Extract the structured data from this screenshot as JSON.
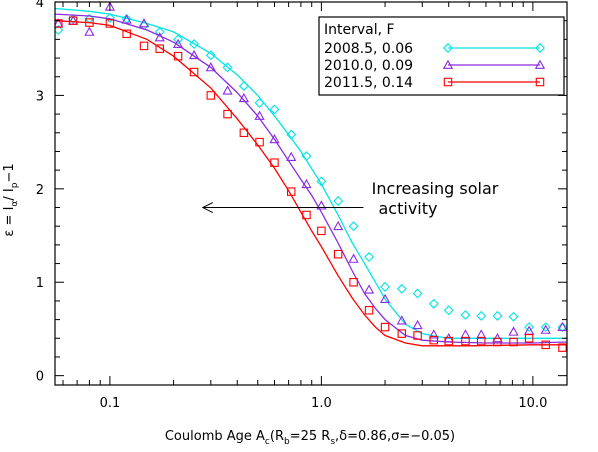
{
  "chart_data": {
    "type": "scatter",
    "title": "",
    "xlabel": "Coulomb Age A",
    "xlabel_sub": "c",
    "xlabel_params": "(R",
    "xlabel_params_sub1": "b",
    "xlabel_params_mid": "=25 R",
    "xlabel_params_sub2": "s",
    "xlabel_params_tail": ",δ=0.86,σ=−0.05)",
    "ylabel": "ε = I",
    "ylabel_sub1": "α",
    "ylabel_mid": "/ I",
    "ylabel_sub2": "p",
    "ylabel_tail": "−1",
    "xscale": "log",
    "xlim": [
      0.055,
      14.5
    ],
    "ylim": [
      -0.1,
      4.0
    ],
    "x_ticks": [
      0.1,
      1.0,
      10.0
    ],
    "x_tick_labels": [
      "0.1",
      "1.0",
      "10.0"
    ],
    "y_ticks": [
      0,
      1,
      2,
      3,
      4
    ],
    "y_tick_labels": [
      "0",
      "1",
      "2",
      "3",
      "4"
    ],
    "legend": {
      "placement": "top-right",
      "title": "Interval, F",
      "entries": [
        "2008.5, 0.06",
        "2010.0, 0.09",
        "2011.5, 0.14"
      ]
    },
    "annotation": {
      "lines": [
        "Increasing solar",
        "activity"
      ],
      "arrow_from_x": 1.58,
      "arrow_to_x": 0.275,
      "arrow_y": 1.8
    },
    "series": [
      {
        "name": "2008.5, 0.06",
        "color": "#00e5e5",
        "marker": "diamond",
        "points": [
          [
            0.057,
            3.7
          ],
          [
            0.067,
            3.82
          ],
          [
            0.08,
            3.82
          ],
          [
            0.1,
            3.83
          ],
          [
            0.12,
            3.82
          ],
          [
            0.145,
            3.75
          ],
          [
            0.172,
            3.68
          ],
          [
            0.21,
            3.6
          ],
          [
            0.25,
            3.55
          ],
          [
            0.3,
            3.43
          ],
          [
            0.36,
            3.3
          ],
          [
            0.43,
            3.1
          ],
          [
            0.51,
            2.92
          ],
          [
            0.6,
            2.85
          ],
          [
            0.72,
            2.58
          ],
          [
            0.85,
            2.35
          ],
          [
            1.0,
            2.08
          ],
          [
            1.2,
            1.87
          ],
          [
            1.42,
            1.6
          ],
          [
            1.68,
            1.27
          ],
          [
            2.0,
            0.95
          ],
          [
            2.4,
            0.93
          ],
          [
            2.85,
            0.88
          ],
          [
            3.4,
            0.77
          ],
          [
            4.0,
            0.7
          ],
          [
            4.8,
            0.65
          ],
          [
            5.7,
            0.64
          ],
          [
            6.8,
            0.64
          ],
          [
            8.1,
            0.63
          ],
          [
            9.6,
            0.52
          ],
          [
            11.5,
            0.52
          ],
          [
            13.8,
            0.52
          ]
        ],
        "curve": [
          [
            0.055,
            3.93
          ],
          [
            0.08,
            3.9
          ],
          [
            0.1,
            3.87
          ],
          [
            0.15,
            3.77
          ],
          [
            0.2,
            3.68
          ],
          [
            0.3,
            3.45
          ],
          [
            0.4,
            3.22
          ],
          [
            0.5,
            3.0
          ],
          [
            0.6,
            2.78
          ],
          [
            0.7,
            2.58
          ],
          [
            0.8,
            2.4
          ],
          [
            1.0,
            2.05
          ],
          [
            1.2,
            1.72
          ],
          [
            1.4,
            1.42
          ],
          [
            1.6,
            1.2
          ],
          [
            1.8,
            1.0
          ],
          [
            2.0,
            0.82
          ],
          [
            2.5,
            0.55
          ],
          [
            3.0,
            0.45
          ],
          [
            3.5,
            0.42
          ],
          [
            4.0,
            0.4
          ],
          [
            6.0,
            0.4
          ],
          [
            10.0,
            0.4
          ],
          [
            14.5,
            0.4
          ]
        ]
      },
      {
        "name": "2010.0, 0.09",
        "color": "#8a2be2",
        "marker": "triangle",
        "points": [
          [
            0.057,
            3.77
          ],
          [
            0.067,
            3.8
          ],
          [
            0.08,
            3.68
          ],
          [
            0.1,
            3.95
          ],
          [
            0.12,
            3.81
          ],
          [
            0.145,
            3.77
          ],
          [
            0.172,
            3.62
          ],
          [
            0.21,
            3.55
          ],
          [
            0.25,
            3.43
          ],
          [
            0.3,
            3.3
          ],
          [
            0.36,
            3.05
          ],
          [
            0.43,
            2.97
          ],
          [
            0.51,
            2.78
          ],
          [
            0.6,
            2.53
          ],
          [
            0.72,
            2.34
          ],
          [
            0.85,
            2.05
          ],
          [
            1.0,
            1.82
          ],
          [
            1.2,
            1.6
          ],
          [
            1.42,
            1.25
          ],
          [
            1.68,
            0.92
          ],
          [
            2.0,
            0.82
          ],
          [
            2.4,
            0.59
          ],
          [
            2.85,
            0.54
          ],
          [
            3.4,
            0.44
          ],
          [
            4.0,
            0.4
          ],
          [
            4.8,
            0.44
          ],
          [
            5.7,
            0.44
          ],
          [
            6.8,
            0.4
          ],
          [
            8.1,
            0.47
          ],
          [
            9.6,
            0.48
          ],
          [
            11.5,
            0.49
          ],
          [
            13.8,
            0.52
          ]
        ],
        "curve": [
          [
            0.055,
            3.87
          ],
          [
            0.08,
            3.85
          ],
          [
            0.1,
            3.82
          ],
          [
            0.15,
            3.7
          ],
          [
            0.2,
            3.57
          ],
          [
            0.3,
            3.3
          ],
          [
            0.4,
            3.03
          ],
          [
            0.5,
            2.78
          ],
          [
            0.6,
            2.53
          ],
          [
            0.7,
            2.3
          ],
          [
            0.8,
            2.1
          ],
          [
            0.9,
            1.93
          ],
          [
            1.0,
            1.75
          ],
          [
            1.2,
            1.42
          ],
          [
            1.4,
            1.12
          ],
          [
            1.6,
            0.88
          ],
          [
            1.8,
            0.72
          ],
          [
            2.0,
            0.6
          ],
          [
            2.5,
            0.43
          ],
          [
            3.0,
            0.38
          ],
          [
            4.0,
            0.36
          ],
          [
            6.0,
            0.35
          ],
          [
            10.0,
            0.35
          ],
          [
            14.5,
            0.36
          ]
        ]
      },
      {
        "name": "2011.5, 0.14",
        "color": "#ff0000",
        "marker": "square",
        "points": [
          [
            0.057,
            3.77
          ],
          [
            0.067,
            3.8
          ],
          [
            0.08,
            3.78
          ],
          [
            0.1,
            3.77
          ],
          [
            0.12,
            3.66
          ],
          [
            0.145,
            3.53
          ],
          [
            0.172,
            3.5
          ],
          [
            0.21,
            3.42
          ],
          [
            0.25,
            3.25
          ],
          [
            0.3,
            3.0
          ],
          [
            0.36,
            2.8
          ],
          [
            0.43,
            2.6
          ],
          [
            0.51,
            2.5
          ],
          [
            0.6,
            2.28
          ],
          [
            0.72,
            1.97
          ],
          [
            0.85,
            1.72
          ],
          [
            1.0,
            1.55
          ],
          [
            1.2,
            1.3
          ],
          [
            1.42,
            1.0
          ],
          [
            1.68,
            0.7
          ],
          [
            2.0,
            0.52
          ],
          [
            2.4,
            0.45
          ],
          [
            2.85,
            0.43
          ],
          [
            3.4,
            0.38
          ],
          [
            4.0,
            0.37
          ],
          [
            4.8,
            0.37
          ],
          [
            5.7,
            0.37
          ],
          [
            6.8,
            0.36
          ],
          [
            8.1,
            0.36
          ],
          [
            9.6,
            0.4
          ],
          [
            11.5,
            0.33
          ],
          [
            13.8,
            0.3
          ]
        ],
        "curve": [
          [
            0.055,
            3.8
          ],
          [
            0.08,
            3.78
          ],
          [
            0.1,
            3.75
          ],
          [
            0.15,
            3.6
          ],
          [
            0.2,
            3.42
          ],
          [
            0.3,
            3.08
          ],
          [
            0.4,
            2.75
          ],
          [
            0.5,
            2.47
          ],
          [
            0.6,
            2.22
          ],
          [
            0.7,
            1.98
          ],
          [
            0.8,
            1.75
          ],
          [
            0.9,
            1.55
          ],
          [
            1.0,
            1.38
          ],
          [
            1.2,
            1.07
          ],
          [
            1.4,
            0.83
          ],
          [
            1.6,
            0.65
          ],
          [
            1.8,
            0.52
          ],
          [
            2.0,
            0.43
          ],
          [
            2.5,
            0.35
          ],
          [
            3.0,
            0.32
          ],
          [
            5.0,
            0.32
          ],
          [
            10.0,
            0.33
          ],
          [
            14.5,
            0.33
          ]
        ]
      }
    ]
  }
}
